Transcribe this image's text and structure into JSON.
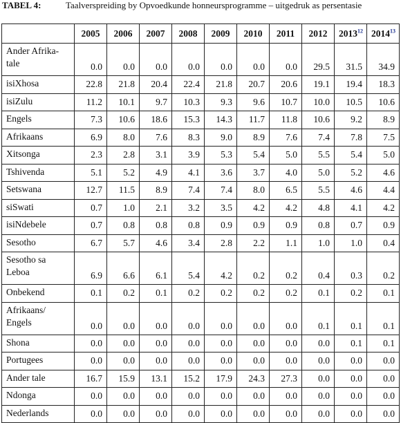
{
  "caption": {
    "number": "TABEL 4:",
    "title": "Taalverspreiding by Opvoedkunde honneursprogramme – uitgedruk as persentasie"
  },
  "table": {
    "header_first": "",
    "years": [
      {
        "label": "2005",
        "note": ""
      },
      {
        "label": "2006",
        "note": ""
      },
      {
        "label": "2007",
        "note": ""
      },
      {
        "label": "2008",
        "note": ""
      },
      {
        "label": "2009",
        "note": ""
      },
      {
        "label": "2010",
        "note": ""
      },
      {
        "label": "2011",
        "note": ""
      },
      {
        "label": "2012",
        "note": ""
      },
      {
        "label": "2013",
        "note": "12"
      },
      {
        "label": "2014",
        "note": "13"
      }
    ],
    "rows": [
      {
        "language": "Ander Afrika-tale",
        "values": [
          "0.0",
          "0.0",
          "0.0",
          "0.0",
          "0.0",
          "0.0",
          "0.0",
          "29.5",
          "31.5",
          "34.9"
        ],
        "tall": true
      },
      {
        "language": "isiXhosa",
        "values": [
          "22.8",
          "21.8",
          "20.4",
          "22.4",
          "21.8",
          "20.7",
          "20.6",
          "19.1",
          "19.4",
          "18.3"
        ]
      },
      {
        "language": "isiZulu",
        "values": [
          "11.2",
          "10.1",
          "9.7",
          "10.3",
          "9.3",
          "9.6",
          "10.7",
          "10.0",
          "10.5",
          "10.6"
        ]
      },
      {
        "language": "Engels",
        "values": [
          "7.3",
          "10.6",
          "18.6",
          "15.3",
          "14.3",
          "11.7",
          "11.8",
          "10.6",
          "9.2",
          "8.9"
        ]
      },
      {
        "language": "Afrikaans",
        "values": [
          "6.9",
          "8.0",
          "7.6",
          "8.3",
          "9.0",
          "8.9",
          "7.6",
          "7.4",
          "7.8",
          "7.5"
        ]
      },
      {
        "language": "Xitsonga",
        "values": [
          "2.3",
          "2.8",
          "3.1",
          "3.9",
          "5.3",
          "5.4",
          "5.0",
          "5.5",
          "5.4",
          "5.0"
        ]
      },
      {
        "language": "Tshivenda",
        "values": [
          "5.1",
          "5.2",
          "4.9",
          "4.1",
          "3.6",
          "3.7",
          "4.0",
          "5.0",
          "5.2",
          "4.6"
        ]
      },
      {
        "language": "Setswana",
        "values": [
          "12.7",
          "11.5",
          "8.9",
          "7.4",
          "7.4",
          "8.0",
          "6.5",
          "5.5",
          "4.6",
          "4.4"
        ]
      },
      {
        "language": "siSwati",
        "values": [
          "0.7",
          "1.0",
          "2.1",
          "3.2",
          "3.5",
          "4.2",
          "4.2",
          "4.8",
          "4.1",
          "4.2"
        ]
      },
      {
        "language": "isiNdebele",
        "values": [
          "0.7",
          "0.8",
          "0.8",
          "0.8",
          "0.9",
          "0.9",
          "0.9",
          "0.8",
          "0.7",
          "0.9"
        ]
      },
      {
        "language": "Sesotho",
        "values": [
          "6.7",
          "5.7",
          "4.6",
          "3.4",
          "2.8",
          "2.2",
          "1.1",
          "1.0",
          "1.0",
          "0.4"
        ]
      },
      {
        "language": "Sesotho sa Leboa",
        "values": [
          "6.9",
          "6.6",
          "6.1",
          "5.4",
          "4.2",
          "0.2",
          "0.2",
          "0.4",
          "0.3",
          "0.2"
        ],
        "tall": true
      },
      {
        "language": "Onbekend",
        "values": [
          "0.1",
          "0.2",
          "0.1",
          "0.2",
          "0.2",
          "0.2",
          "0.2",
          "0.1",
          "0.2",
          "0.1"
        ]
      },
      {
        "language": "Afrikaans/ Engels",
        "values": [
          "0.0",
          "0.0",
          "0.0",
          "0.0",
          "0.0",
          "0.0",
          "0.0",
          "0.1",
          "0.1",
          "0.1"
        ],
        "tall": true
      },
      {
        "language": "Shona",
        "values": [
          "0.0",
          "0.0",
          "0.0",
          "0.0",
          "0.0",
          "0.0",
          "0.0",
          "0.0",
          "0.1",
          "0.1"
        ]
      },
      {
        "language": "Portugees",
        "values": [
          "0.0",
          "0.0",
          "0.0",
          "0.0",
          "0.0",
          "0.0",
          "0.0",
          "0.0",
          "0.0",
          "0.0"
        ]
      },
      {
        "language": "Ander tale",
        "values": [
          "16.7",
          "15.9",
          "13.1",
          "15.2",
          "17.9",
          "24.3",
          "27.3",
          "0.0",
          "0.0",
          "0.0"
        ]
      },
      {
        "language": "Ndonga",
        "values": [
          "0.0",
          "0.0",
          "0.0",
          "0.0",
          "0.0",
          "0.0",
          "0.0",
          "0.0",
          "0.0",
          "0.0"
        ]
      },
      {
        "language": "Nederlands",
        "values": [
          "0.0",
          "0.0",
          "0.0",
          "0.0",
          "0.0",
          "0.0",
          "0.0",
          "0.0",
          "0.0",
          "0.0"
        ]
      }
    ]
  }
}
